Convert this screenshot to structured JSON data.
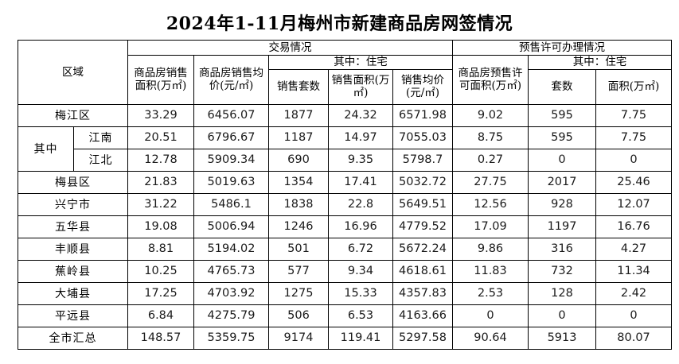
{
  "title": "2024年1-11月梅州市新建商品房网签情况",
  "table": {
    "header": {
      "region": "区域",
      "group_transaction": "交易情况",
      "group_presale": "预售许可办理情况",
      "col_sales_area": "商品房销售面积(万㎡)",
      "col_sales_avg_price": "商品房销售均价(元/㎡)",
      "sub_residential": "其中：住宅",
      "col_units_sold": "销售套数",
      "col_res_sales_area": "销售面积(万㎡)",
      "col_res_avg_price": "销售均价(元/㎡)",
      "col_presale_area": "商品房预售许可面积(万㎡)",
      "sub_residential_presale": "其中：住宅",
      "col_presale_units": "套数",
      "col_presale_res_area": "面积(万㎡)"
    },
    "rows": [
      {
        "span": "full",
        "label": "梅江区",
        "values": [
          "33.29",
          "6456.07",
          "1877",
          "24.32",
          "6571.98",
          "9.02",
          "595",
          "7.75"
        ]
      },
      {
        "span": "sub-first",
        "group": "其中",
        "label": "江南",
        "values": [
          "20.51",
          "6796.67",
          "1187",
          "14.97",
          "7055.03",
          "8.75",
          "595",
          "7.75"
        ]
      },
      {
        "span": "sub-cont",
        "label": "江北",
        "values": [
          "12.78",
          "5909.34",
          "690",
          "9.35",
          "5798.7",
          "0.27",
          "0",
          "0"
        ]
      },
      {
        "span": "full",
        "label": "梅县区",
        "values": [
          "21.83",
          "5019.63",
          "1354",
          "17.41",
          "5032.72",
          "27.75",
          "2017",
          "25.46"
        ]
      },
      {
        "span": "full",
        "label": "兴宁市",
        "values": [
          "31.22",
          "5486.1",
          "1838",
          "22.8",
          "5649.51",
          "12.56",
          "928",
          "12.07"
        ]
      },
      {
        "span": "full",
        "label": "五华县",
        "values": [
          "19.08",
          "5006.94",
          "1246",
          "16.96",
          "4779.52",
          "17.09",
          "1197",
          "16.76"
        ]
      },
      {
        "span": "full",
        "label": "丰顺县",
        "values": [
          "8.81",
          "5194.02",
          "501",
          "6.72",
          "5672.24",
          "9.86",
          "316",
          "4.27"
        ]
      },
      {
        "span": "full",
        "label": "蕉岭县",
        "values": [
          "10.25",
          "4765.73",
          "577",
          "9.34",
          "4618.61",
          "11.83",
          "732",
          "11.34"
        ]
      },
      {
        "span": "full",
        "label": "大埔县",
        "values": [
          "17.25",
          "4703.92",
          "1275",
          "15.33",
          "4357.83",
          "2.53",
          "128",
          "2.42"
        ]
      },
      {
        "span": "full",
        "label": "平远县",
        "values": [
          "6.84",
          "4275.79",
          "506",
          "6.53",
          "4163.66",
          "0",
          "0",
          "0"
        ]
      },
      {
        "span": "full",
        "label": "全市汇总",
        "values": [
          "148.57",
          "5359.75",
          "9174",
          "119.41",
          "5297.58",
          "90.64",
          "5913",
          "80.07"
        ]
      }
    ]
  }
}
